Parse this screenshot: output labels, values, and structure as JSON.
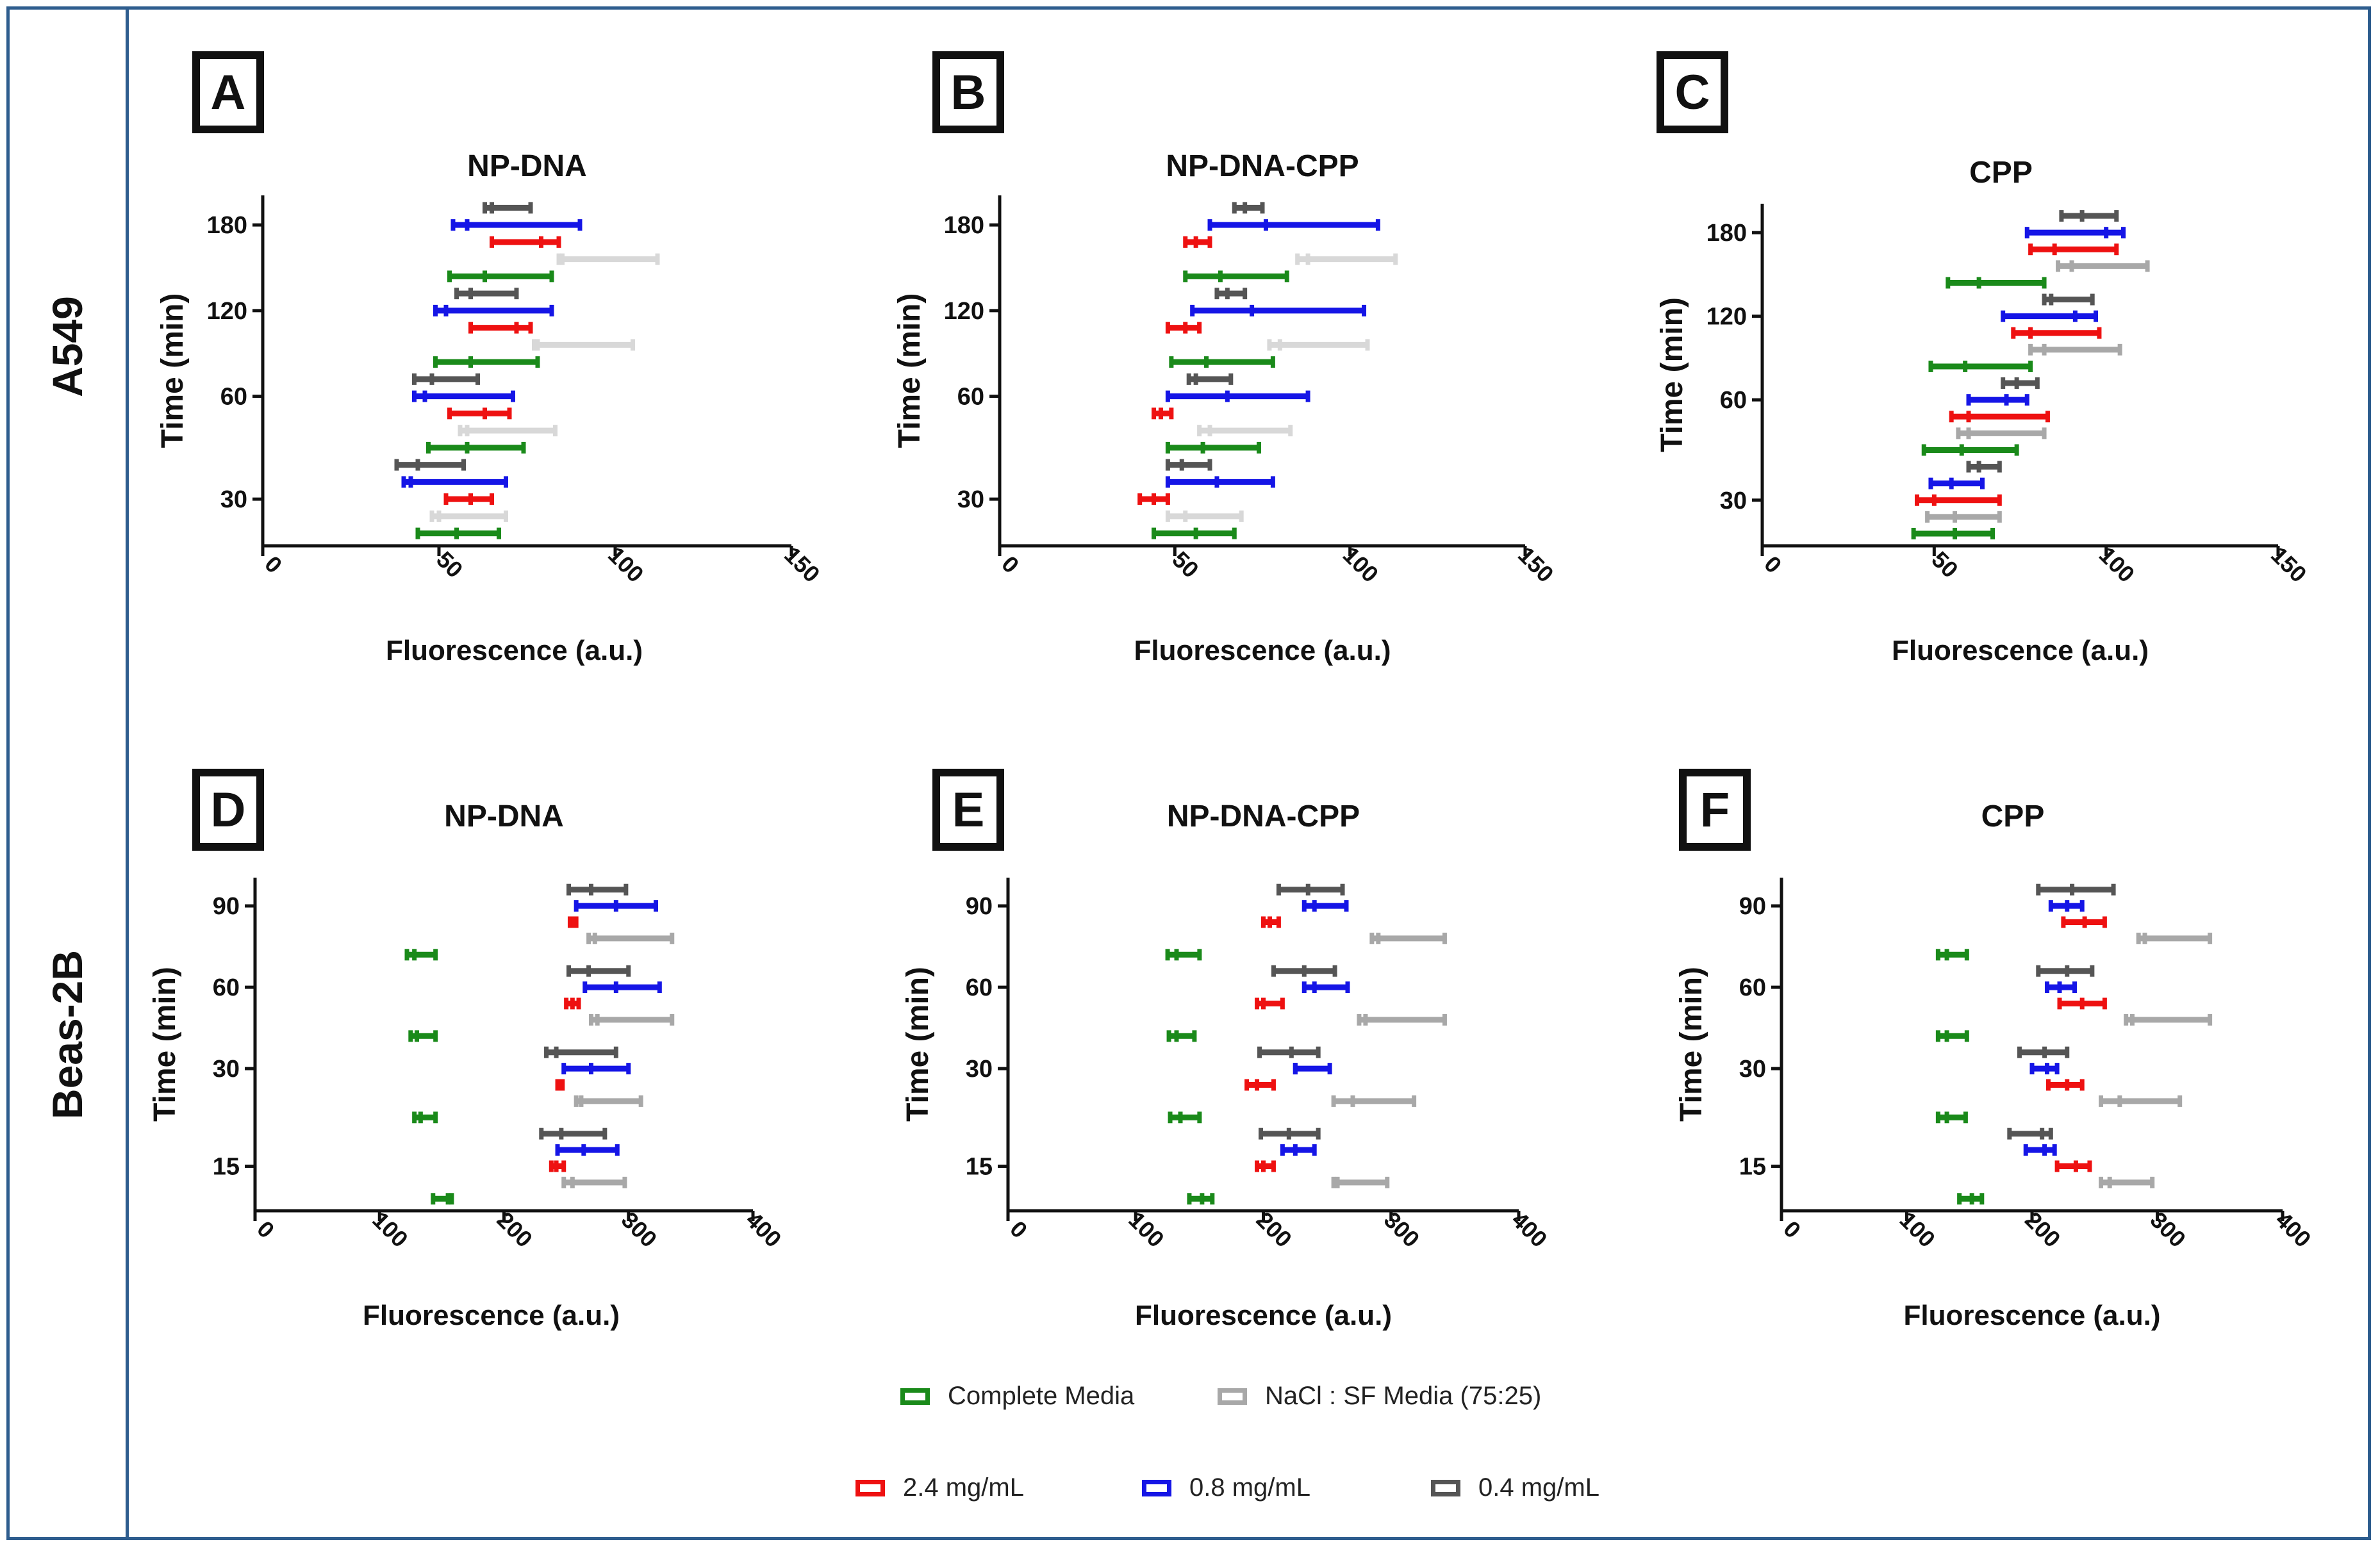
{
  "row_labels": [
    "A549",
    "Beas-2B"
  ],
  "legend": [
    {
      "label": "Complete Media",
      "color": "#1a8a1a"
    },
    {
      "label": "NaCl : SF Media (75:25)",
      "color": "#a8a8a8"
    },
    {
      "label": "2.4 mg/mL",
      "color": "#ee1111"
    },
    {
      "label": "0.8 mg/mL",
      "color": "#1515e6"
    },
    {
      "label": "0.4 mg/mL",
      "color": "#555555"
    }
  ],
  "colors": {
    "complete": "#1a8a1a",
    "nacl_A": "#d8d8d8",
    "nacl_B": "#a8a8a8",
    "c24": "#ee1111",
    "c08": "#1515e6",
    "c04": "#555555",
    "frame": "#2e5d8e"
  },
  "chart_data": [
    {
      "panel": "A",
      "type": "floating-bar-with-error",
      "title": "NP-DNA",
      "xlabel": "Fluorescence (a.u.)",
      "ylabel": "Time (min)",
      "xlim": [
        0,
        150
      ],
      "xticks": [
        "0",
        "50",
        "100",
        "150"
      ],
      "yticks": [
        "30",
        "60",
        "120",
        "180"
      ],
      "series": [
        "complete",
        "nacl_A",
        "c24",
        "c08",
        "c04"
      ],
      "groups": [
        {
          "time": "30",
          "bars": [
            [
              44,
              55,
              67
            ],
            [
              48,
              50,
              69
            ],
            [
              52,
              59,
              65
            ],
            [
              40,
              42,
              69
            ],
            [
              38,
              44,
              57
            ]
          ]
        },
        {
          "time": "60",
          "bars": [
            [
              47,
              58,
              74
            ],
            [
              56,
              58,
              83
            ],
            [
              53,
              63,
              70
            ],
            [
              43,
              46,
              71
            ],
            [
              43,
              48,
              61
            ]
          ]
        },
        {
          "time": "120",
          "bars": [
            [
              49,
              59,
              78
            ],
            [
              77,
              78,
              105
            ],
            [
              59,
              72,
              76
            ],
            [
              49,
              52,
              82
            ],
            [
              55,
              59,
              72
            ]
          ]
        },
        {
          "time": "180",
          "bars": [
            [
              53,
              63,
              82
            ],
            [
              84,
              85,
              112
            ],
            [
              65,
              79,
              84
            ],
            [
              54,
              58,
              90
            ],
            [
              63,
              65,
              76
            ]
          ]
        }
      ]
    },
    {
      "panel": "B",
      "type": "floating-bar-with-error",
      "title": "NP-DNA-CPP",
      "xlabel": "Fluorescence (a.u.)",
      "ylabel": "Time (min)",
      "xlim": [
        0,
        150
      ],
      "xticks": [
        "0",
        "50",
        "100",
        "150"
      ],
      "yticks": [
        "30",
        "60",
        "120",
        "180"
      ],
      "series": [
        "complete",
        "nacl_A",
        "c24",
        "c08",
        "c04"
      ],
      "groups": [
        {
          "time": "30",
          "bars": [
            [
              44,
              56,
              67
            ],
            [
              48,
              53,
              69
            ],
            [
              40,
              44,
              48
            ],
            [
              48,
              62,
              78
            ],
            [
              48,
              52,
              60
            ]
          ]
        },
        {
          "time": "60",
          "bars": [
            [
              48,
              58,
              74
            ],
            [
              57,
              60,
              83
            ],
            [
              44,
              46,
              49
            ],
            [
              48,
              65,
              88
            ],
            [
              54,
              56,
              66
            ]
          ]
        },
        {
          "time": "120",
          "bars": [
            [
              49,
              59,
              78
            ],
            [
              77,
              80,
              105
            ],
            [
              48,
              53,
              57
            ],
            [
              55,
              72,
              104
            ],
            [
              62,
              65,
              70
            ]
          ]
        },
        {
          "time": "180",
          "bars": [
            [
              53,
              63,
              82
            ],
            [
              85,
              88,
              113
            ],
            [
              53,
              56,
              60
            ],
            [
              60,
              76,
              108
            ],
            [
              67,
              70,
              75
            ]
          ]
        }
      ]
    },
    {
      "panel": "C",
      "type": "floating-bar-with-error",
      "title": "CPP",
      "xlabel": "Fluorescence (a.u.)",
      "ylabel": "Time (min)",
      "xlim": [
        0,
        150
      ],
      "xticks": [
        "0",
        "50",
        "100",
        "150"
      ],
      "yticks": [
        "30",
        "60",
        "120",
        "180"
      ],
      "series": [
        "complete",
        "nacl_B",
        "c24",
        "c08",
        "c04"
      ],
      "groups": [
        {
          "time": "30",
          "bars": [
            [
              44,
              56,
              67
            ],
            [
              48,
              56,
              69
            ],
            [
              45,
              50,
              69
            ],
            [
              49,
              55,
              64
            ],
            [
              60,
              63,
              69
            ]
          ]
        },
        {
          "time": "60",
          "bars": [
            [
              47,
              58,
              74
            ],
            [
              57,
              60,
              82
            ],
            [
              55,
              60,
              83
            ],
            [
              60,
              71,
              77
            ],
            [
              70,
              74,
              80
            ]
          ]
        },
        {
          "time": "120",
          "bars": [
            [
              49,
              59,
              78
            ],
            [
              78,
              82,
              104
            ],
            [
              73,
              78,
              98
            ],
            [
              70,
              91,
              97
            ],
            [
              82,
              84,
              96
            ]
          ]
        },
        {
          "time": "180",
          "bars": [
            [
              54,
              63,
              82
            ],
            [
              86,
              90,
              112
            ],
            [
              78,
              85,
              103
            ],
            [
              77,
              100,
              105
            ],
            [
              87,
              93,
              103
            ]
          ]
        }
      ]
    },
    {
      "panel": "D",
      "type": "floating-bar-with-error",
      "title": "NP-DNA",
      "xlabel": "Fluorescence (a.u.)",
      "ylabel": "Time (min)",
      "xlim": [
        0,
        400
      ],
      "xticks": [
        "0",
        "100",
        "200",
        "300",
        "400"
      ],
      "yticks": [
        "15",
        "30",
        "60",
        "90"
      ],
      "series": [
        "complete",
        "nacl_B",
        "c24",
        "c08",
        "c04"
      ],
      "groups": [
        {
          "time": "15",
          "bars": [
            [
              143,
              155,
              158
            ],
            [
              248,
              255,
              297
            ],
            [
              238,
              242,
              248
            ],
            [
              243,
              264,
              291
            ],
            [
              230,
              246,
              281
            ]
          ]
        },
        {
          "time": "30",
          "bars": [
            [
              128,
              133,
              145
            ],
            [
              258,
              262,
              310
            ],
            [
              243,
              245,
              247
            ],
            [
              248,
              270,
              300
            ],
            [
              234,
              242,
              290
            ]
          ]
        },
        {
          "time": "60",
          "bars": [
            [
              125,
              130,
              145
            ],
            [
              270,
              275,
              335
            ],
            [
              250,
              255,
              260
            ],
            [
              265,
              290,
              325
            ],
            [
              252,
              268,
              300
            ]
          ]
        },
        {
          "time": "90",
          "bars": [
            [
              122,
              128,
              145
            ],
            [
              268,
              273,
              335
            ],
            [
              253,
              256,
              258
            ],
            [
              258,
              290,
              322
            ],
            [
              252,
              270,
              298
            ]
          ]
        }
      ]
    },
    {
      "panel": "E",
      "type": "floating-bar-with-error",
      "title": "NP-DNA-CPP",
      "xlabel": "Fluorescence (a.u.)",
      "ylabel": "Time (min)",
      "xlim": [
        0,
        400
      ],
      "xticks": [
        "0",
        "100",
        "200",
        "300",
        "400"
      ],
      "yticks": [
        "15",
        "30",
        "60",
        "90"
      ],
      "series": [
        "complete",
        "nacl_B",
        "c24",
        "c08",
        "c04"
      ],
      "groups": [
        {
          "time": "15",
          "bars": [
            [
              142,
              152,
              160
            ],
            [
              255,
              258,
              297
            ],
            [
              195,
              200,
              208
            ],
            [
              215,
              225,
              240
            ],
            [
              198,
              220,
              243
            ]
          ]
        },
        {
          "time": "30",
          "bars": [
            [
              127,
              135,
              150
            ],
            [
              255,
              270,
              318
            ],
            [
              187,
              195,
              208
            ],
            [
              225,
              225,
              252
            ],
            [
              197,
              222,
              243
            ]
          ]
        },
        {
          "time": "60",
          "bars": [
            [
              126,
              132,
              146
            ],
            [
              275,
              280,
              342
            ],
            [
              195,
              200,
              215
            ],
            [
              232,
              240,
              266
            ],
            [
              208,
              232,
              256
            ]
          ]
        },
        {
          "time": "90",
          "bars": [
            [
              125,
              132,
              150
            ],
            [
              285,
              290,
              342
            ],
            [
              200,
              205,
              212
            ],
            [
              232,
              240,
              265
            ],
            [
              212,
              235,
              262
            ]
          ]
        }
      ]
    },
    {
      "panel": "F",
      "type": "floating-bar-with-error",
      "title": "CPP",
      "xlabel": "Fluorescence (a.u.)",
      "ylabel": "Time (min)",
      "xlim": [
        0,
        400
      ],
      "xticks": [
        "0",
        "100",
        "200",
        "300",
        "400"
      ],
      "yticks": [
        "15",
        "30",
        "60",
        "90"
      ],
      "series": [
        "complete",
        "nacl_B",
        "c24",
        "c08",
        "c04"
      ],
      "groups": [
        {
          "time": "15",
          "bars": [
            [
              142,
              152,
              160
            ],
            [
              255,
              262,
              296
            ],
            [
              220,
              235,
              246
            ],
            [
              195,
              210,
              218
            ],
            [
              182,
              208,
              215
            ]
          ]
        },
        {
          "time": "30",
          "bars": [
            [
              125,
              132,
              147
            ],
            [
              255,
              270,
              318
            ],
            [
              213,
              228,
              240
            ],
            [
              200,
              212,
              220
            ],
            [
              190,
              210,
              228
            ]
          ]
        },
        {
          "time": "60",
          "bars": [
            [
              125,
              132,
              148
            ],
            [
              275,
              280,
              342
            ],
            [
              222,
              240,
              258
            ],
            [
              212,
              222,
              234
            ],
            [
              205,
              228,
              248
            ]
          ]
        },
        {
          "time": "90",
          "bars": [
            [
              125,
              132,
              148
            ],
            [
              285,
              290,
              342
            ],
            [
              225,
              242,
              258
            ],
            [
              215,
              228,
              240
            ],
            [
              205,
              232,
              265
            ]
          ]
        }
      ]
    }
  ]
}
